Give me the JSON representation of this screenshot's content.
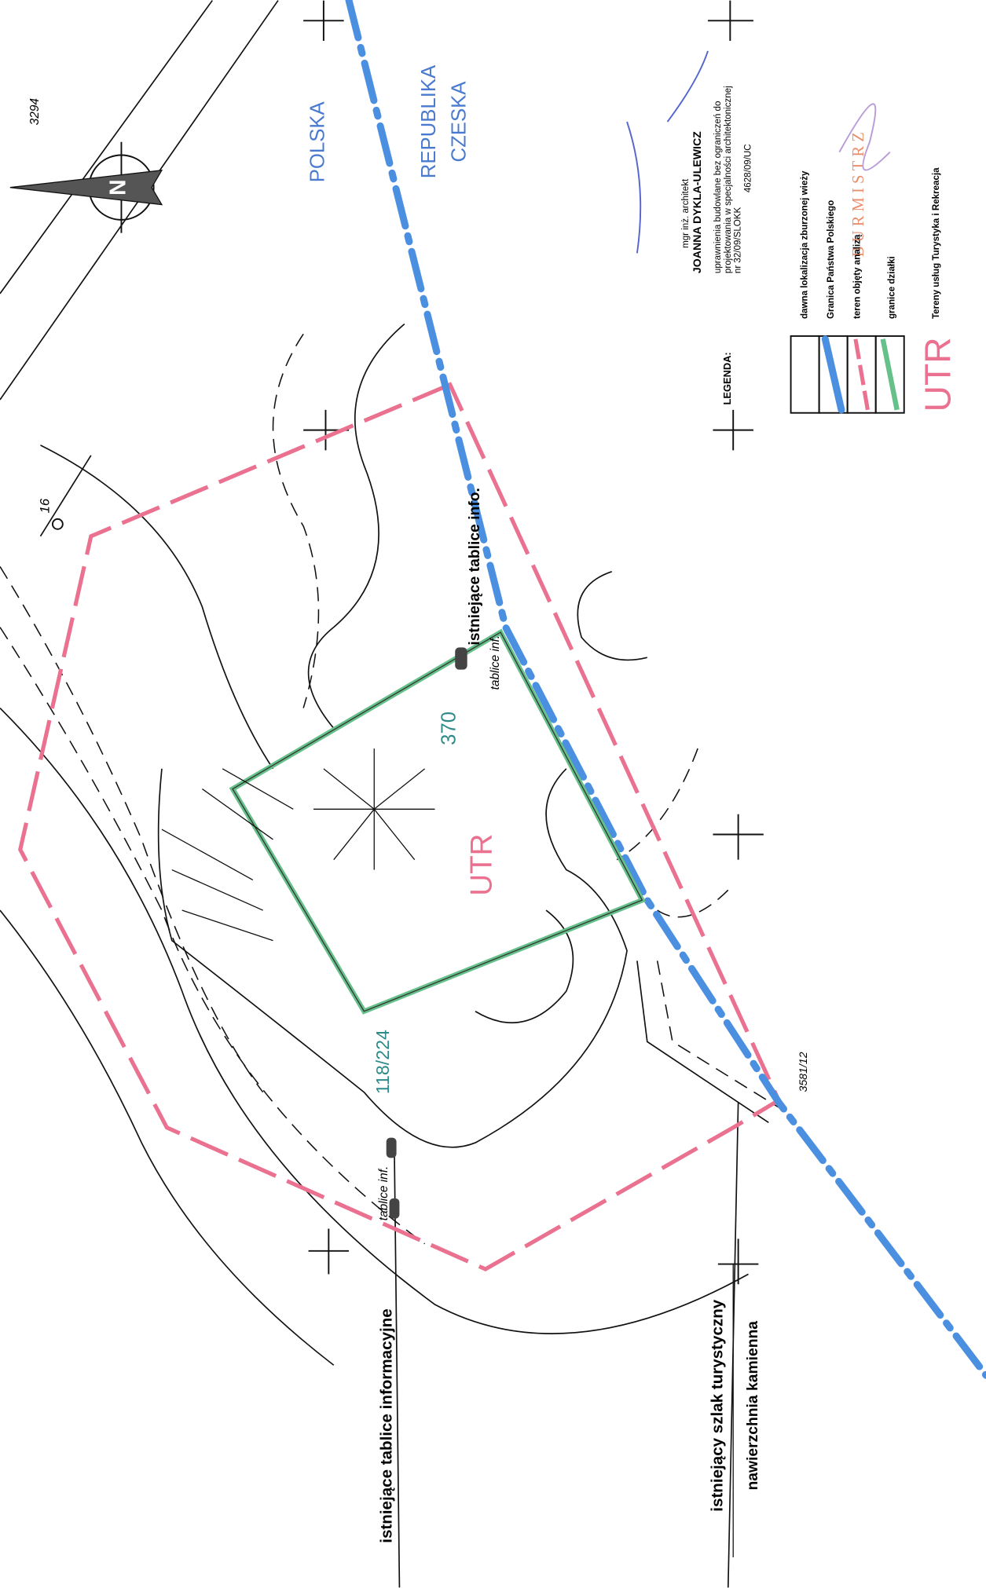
{
  "map": {
    "sheet_number": "3294",
    "north_label": "N",
    "point_label": "16",
    "countries": {
      "poland": "POLSKA",
      "czech_line1": "REPUBLIKA",
      "czech_line2": "CZESKA"
    },
    "labels": {
      "info_boards_top": "istniejące tablice info.",
      "boards_inf_1": "tablice inf.",
      "plot_370": "370",
      "zone": "UTR",
      "plot_118": "118/224",
      "boards_inf_2": "tablice inf.",
      "plot_3581": "3581/12",
      "info_boards_bottom": "istniejące tablice informacyjne",
      "trail_line1": "istniejący szlak turystyczny",
      "trail_line2": "nawierzchnia kamienna"
    },
    "architect": {
      "title": "mgr inż. architekt",
      "name": "JOANNA DYKLA-ULEWICZ",
      "line1": "uprawnienia budowlane bez ograniczeń do",
      "line2": "projektowania w specjalności architektonicznej",
      "line3": "nr 32/09/SLOKK",
      "line4": "4628/09/UC"
    },
    "stamp": "BURMISTRZ",
    "legend": {
      "title": "LEGENDA:",
      "items": [
        "dawna lokalizacja zburzonej wieży",
        "Granica Państwa Polskiego",
        "teren objęty analizą",
        "granice działki"
      ],
      "zone_symbol": "UTR",
      "zone_description": "Tereny usług Turystyka i Rekreacja"
    }
  }
}
